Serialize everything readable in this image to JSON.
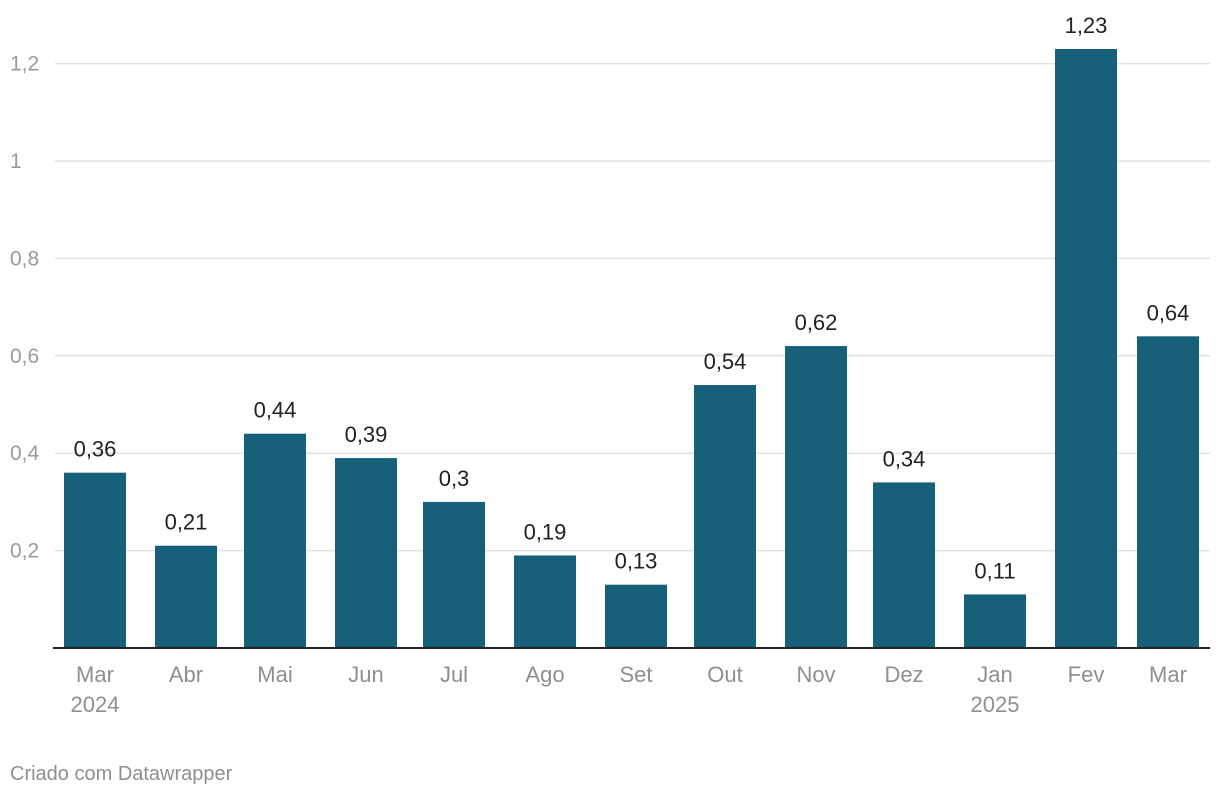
{
  "chart_data": {
    "type": "bar",
    "title": "",
    "xlabel": "",
    "ylabel": "",
    "categories": [
      [
        "Mar",
        "2024"
      ],
      [
        "Abr"
      ],
      [
        "Mai"
      ],
      [
        "Jun"
      ],
      [
        "Jul"
      ],
      [
        "Ago"
      ],
      [
        "Set"
      ],
      [
        "Out"
      ],
      [
        "Nov"
      ],
      [
        "Dez"
      ],
      [
        "Jan",
        "2025"
      ],
      [
        "Fev"
      ],
      [
        "Mar"
      ]
    ],
    "values": [
      0.36,
      0.21,
      0.44,
      0.39,
      0.3,
      0.19,
      0.13,
      0.54,
      0.62,
      0.34,
      0.11,
      1.23,
      0.64
    ],
    "value_labels": [
      "0,36",
      "0,21",
      "0,44",
      "0,39",
      "0,3",
      "0,19",
      "0,13",
      "0,54",
      "0,62",
      "0,34",
      "0,11",
      "1,23",
      "0,64"
    ],
    "y_ticks": [
      0.2,
      0.4,
      0.6,
      0.8,
      1.0,
      1.2
    ],
    "y_tick_labels": [
      "0,2",
      "0,4",
      "0,6",
      "0,8",
      "1",
      "1,2"
    ],
    "ylim": [
      0,
      1.23
    ],
    "grid": true,
    "bar_color": "#17607a"
  },
  "footer": {
    "credit": "Criado com Datawrapper"
  }
}
